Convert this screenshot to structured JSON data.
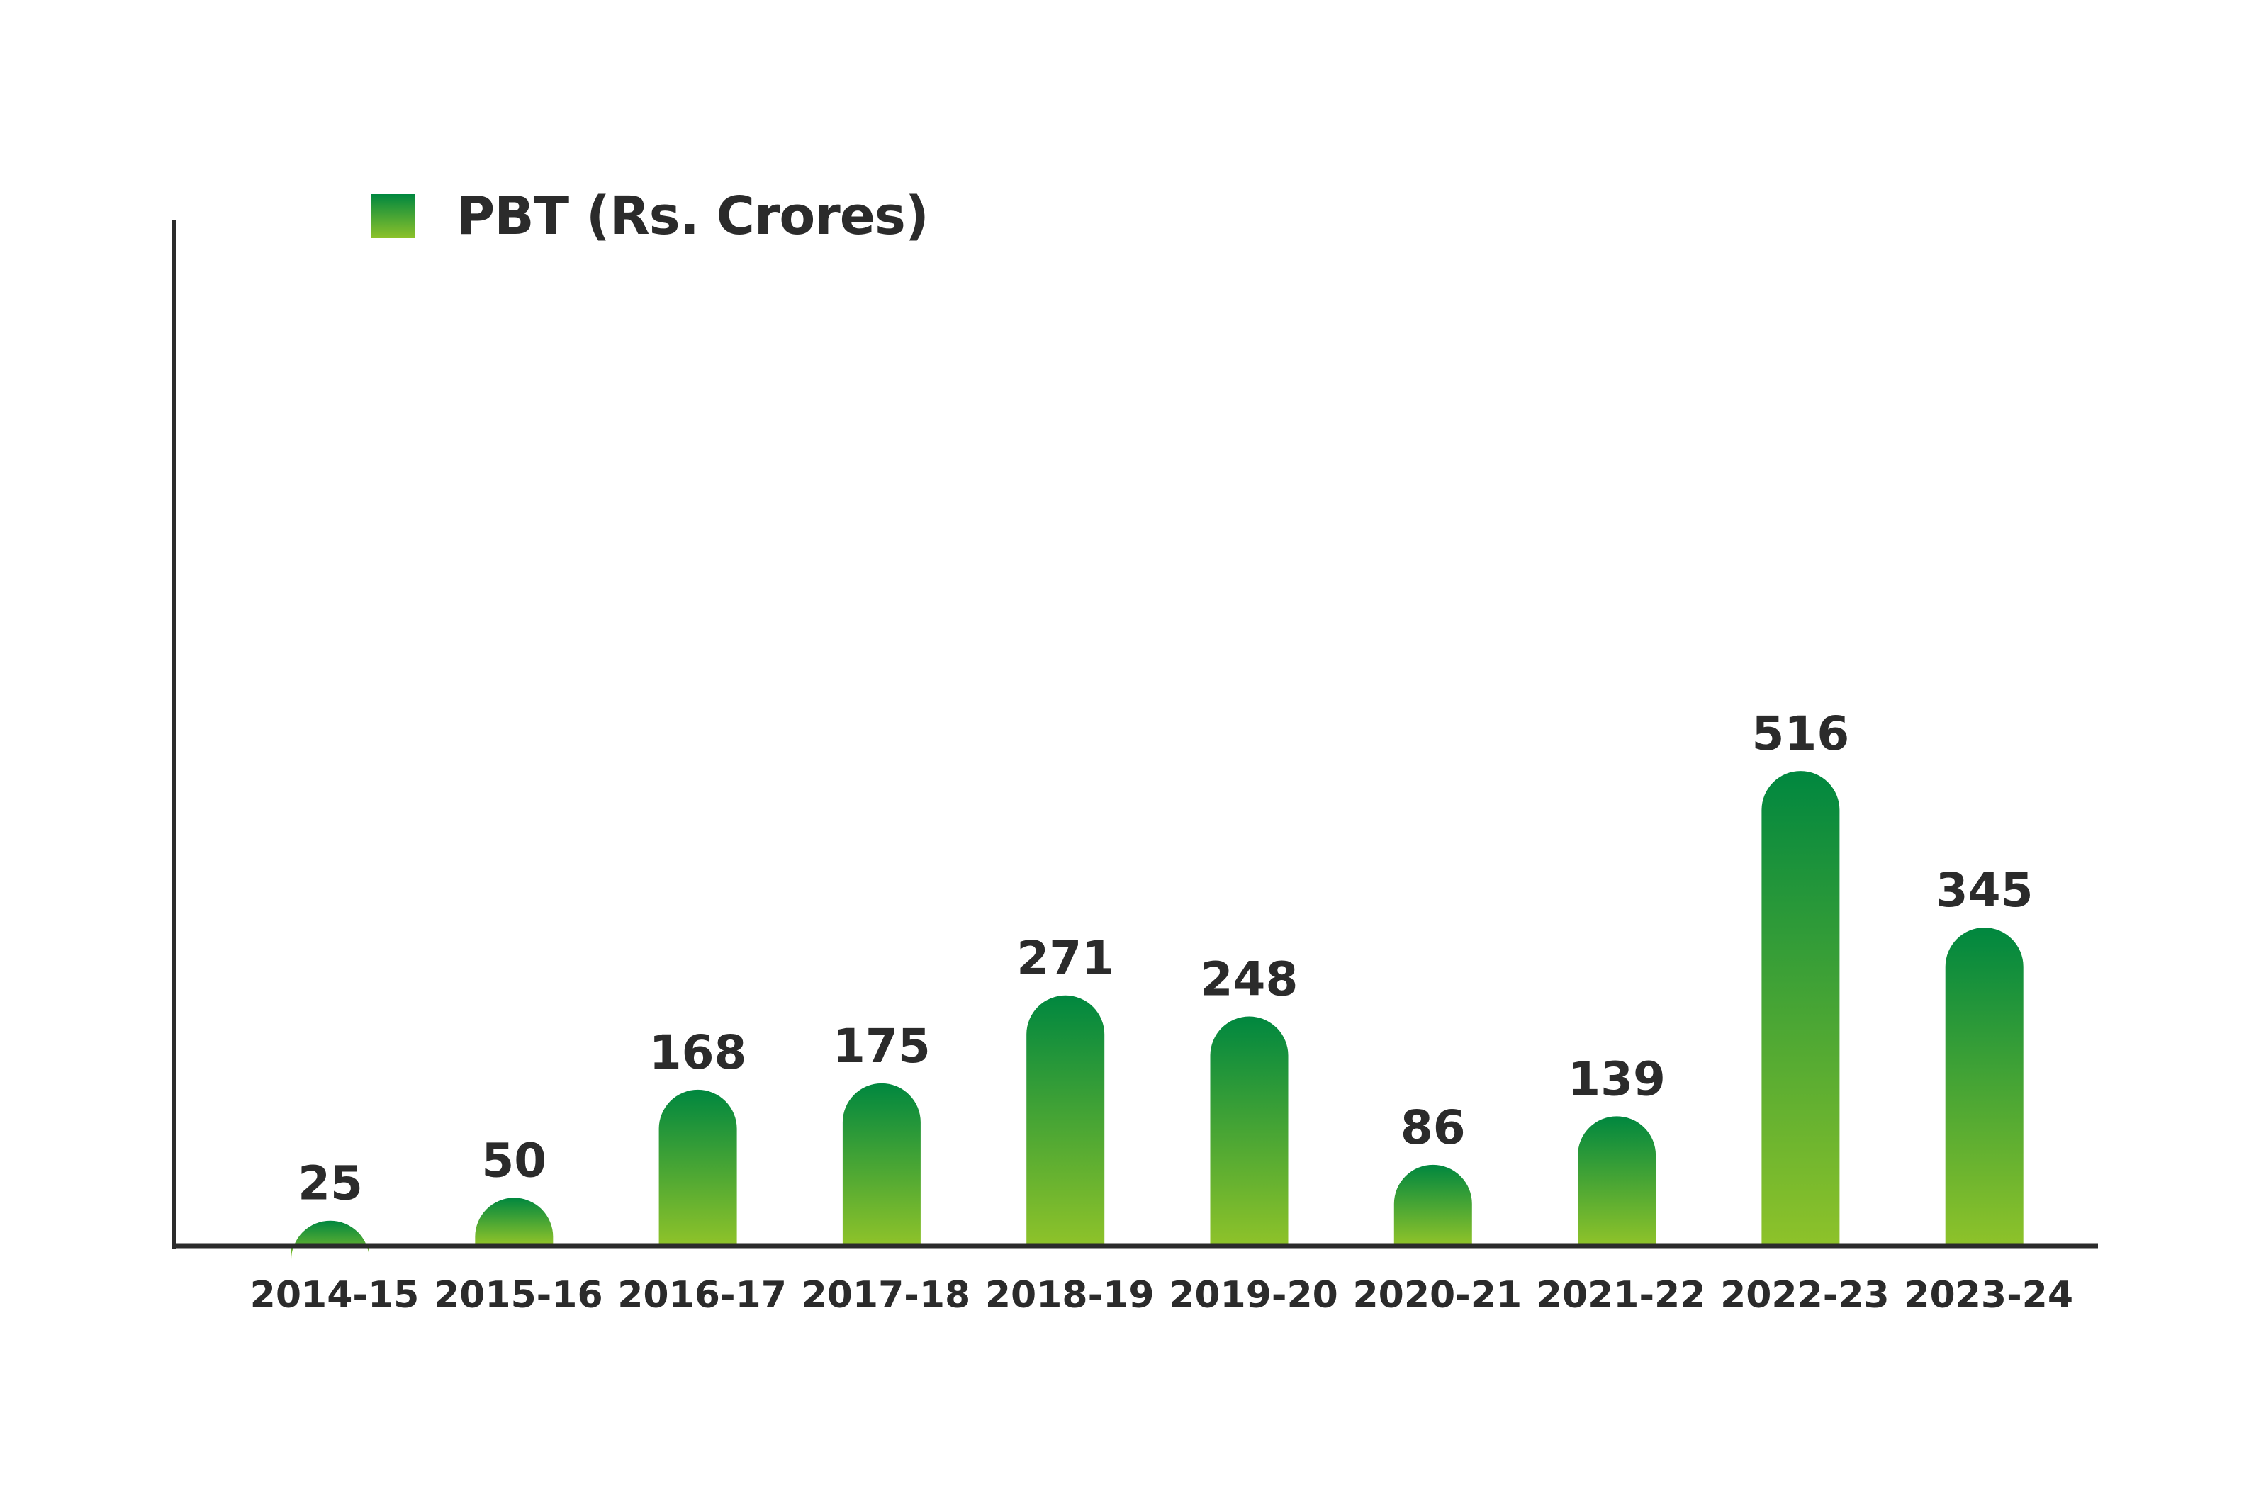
{
  "chart_data": {
    "type": "bar",
    "series": [
      {
        "name": "PBT (Rs. Crores)",
        "values": [
          25,
          50,
          168,
          175,
          271,
          248,
          86,
          139,
          516,
          345
        ]
      }
    ],
    "categories": [
      "2014-15",
      "2015-16",
      "2016-17",
      "2017-18",
      "2018-19",
      "2019-20",
      "2020-21",
      "2021-22",
      "2022-23",
      "2023-24"
    ],
    "data_labels": [
      "25",
      "50",
      "168",
      "175",
      "271",
      "248",
      "86",
      "139",
      "516",
      "345"
    ],
    "legend_position": "top-left",
    "grid": false,
    "colors": {
      "bar_top": "#00873f",
      "bar_bottom": "#8dc22a",
      "axis": "#2b2b2b",
      "text": "#2b2b2b"
    }
  }
}
